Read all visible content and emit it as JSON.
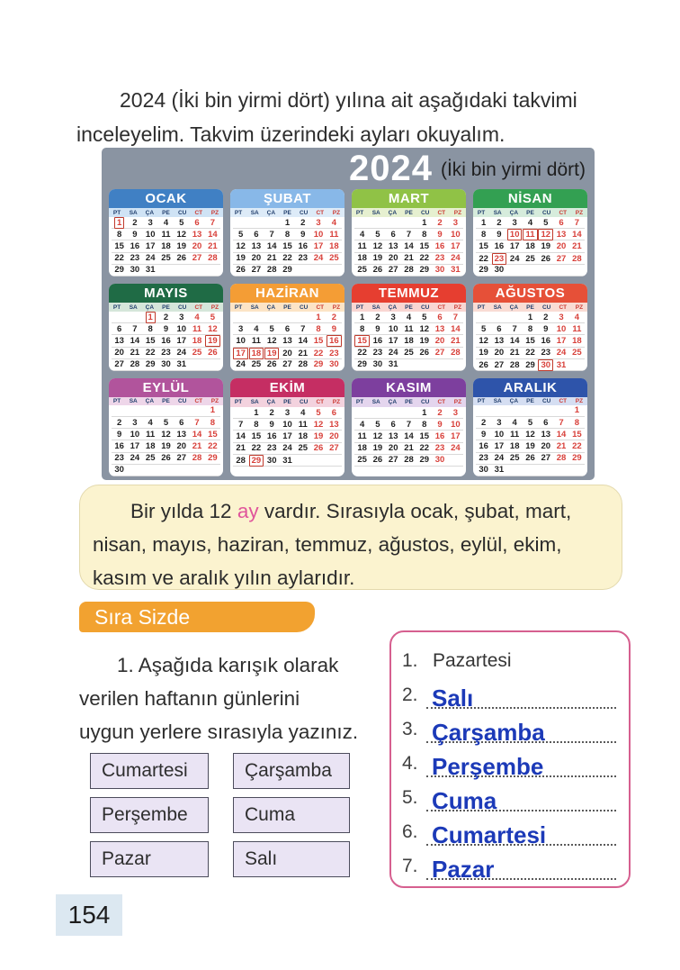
{
  "page": {
    "intro_lines": [
      "2024 (İki bin yirmi dört) yılına ait aşağıdaki takvimi",
      "inceleyelim. Takvim üzerindeki ayları okuyalım."
    ],
    "page_number": "154"
  },
  "calendar": {
    "year": "2024",
    "year_suffix": "(İki bin yirmi dört)",
    "background_color": "#8a94a2",
    "day_headers": [
      "PT",
      "SA",
      "ÇA",
      "PE",
      "CU",
      "CT",
      "PZ"
    ],
    "weekday_header_color": "#23406e",
    "weekend_header_color": "#cc3b34",
    "weekend_date_color": "#d8403a",
    "holiday_box_color": "#c0392b",
    "months": [
      {
        "name": "OCAK",
        "color": "#4080c4",
        "tint": "#cfe3f5",
        "start": 0,
        "days": 31,
        "boxed": [
          1
        ]
      },
      {
        "name": "ŞUBAT",
        "color": "#88b8e8",
        "tint": "#ddebf8",
        "start": 3,
        "days": 29,
        "boxed": []
      },
      {
        "name": "MART",
        "color": "#90c246",
        "tint": "#e6f0d0",
        "start": 4,
        "days": 31,
        "boxed": []
      },
      {
        "name": "NİSAN",
        "color": "#33a052",
        "tint": "#d6ecdc",
        "start": 0,
        "days": 30,
        "boxed": [
          10,
          11,
          12,
          23
        ]
      },
      {
        "name": "MAYIS",
        "color": "#1f6b45",
        "tint": "#d5e6da",
        "start": 2,
        "days": 31,
        "boxed": [
          1,
          19
        ]
      },
      {
        "name": "HAZİRAN",
        "color": "#f49d35",
        "tint": "#fce4c6",
        "start": 5,
        "days": 30,
        "boxed": [
          16,
          17,
          18,
          19
        ]
      },
      {
        "name": "TEMMUZ",
        "color": "#e63e30",
        "tint": "#f9d6d2",
        "start": 0,
        "days": 31,
        "boxed": [
          15
        ]
      },
      {
        "name": "AĞUSTOS",
        "color": "#e65038",
        "tint": "#f9dcd4",
        "start": 3,
        "days": 31,
        "boxed": [
          30
        ]
      },
      {
        "name": "EYLÜL",
        "color": "#b1549c",
        "tint": "#eed6e9",
        "start": 6,
        "days": 30,
        "boxed": []
      },
      {
        "name": "EKİM",
        "color": "#c52e63",
        "tint": "#f3d2de",
        "start": 1,
        "days": 31,
        "boxed": [
          29
        ]
      },
      {
        "name": "KASIM",
        "color": "#7d3f9e",
        "tint": "#e4d5ee",
        "start": 4,
        "days": 30,
        "boxed": []
      },
      {
        "name": "ARALIK",
        "color": "#2e54aa",
        "tint": "#d5def2",
        "start": 6,
        "days": 31,
        "boxed": []
      }
    ]
  },
  "note_box": {
    "text_before": "Bir yılda 12 ",
    "highlight": "ay",
    "text_after": " vardır. Sırasıyla ocak, şubat, mart, nisan, mayıs, haziran, temmuz, ağustos, eylül, ekim, kasım ve aralık yılın aylarıdır.",
    "highlight_color": "#e0559b"
  },
  "exercise": {
    "section_title": "Sıra Sizde",
    "instruction_lines": [
      "1. Aşağıda karışık olarak",
      "verilen haftanın günlerini",
      "uygun yerlere sırasıyla yazınız."
    ],
    "word_boxes": [
      "Cumartesi",
      "Çarşamba",
      "Perşembe",
      "Cuma",
      "Pazar",
      "Salı"
    ],
    "answers": [
      {
        "num": "1.",
        "given": "Pazartesi",
        "written": ""
      },
      {
        "num": "2.",
        "given": "",
        "written": "Salı"
      },
      {
        "num": "3.",
        "given": "",
        "written": "Çarşamba"
      },
      {
        "num": "4.",
        "given": "",
        "written": "Perşembe"
      },
      {
        "num": "5.",
        "given": "",
        "written": "Cuma"
      },
      {
        "num": "6.",
        "given": "",
        "written": "Cumartesi"
      },
      {
        "num": "7.",
        "given": "",
        "written": "Pazar"
      }
    ],
    "answer_color": "#1c3ab8"
  }
}
